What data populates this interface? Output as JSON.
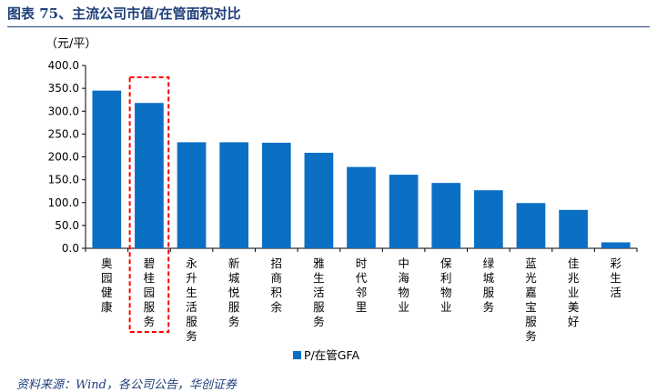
{
  "header": {
    "title": "图表 75、主流公司市值/在管面积对比"
  },
  "chart_data": {
    "type": "bar",
    "unit_label": "（元/平）",
    "categories": [
      "奥园健康",
      "碧桂园服务",
      "永升生活服务",
      "新城悦服务",
      "招商积余",
      "雅生活服务",
      "时代邻里",
      "中海物业",
      "保利物业",
      "绿城服务",
      "蓝光嘉宝服务",
      "佳兆业美好",
      "彩生活"
    ],
    "series": [
      {
        "name": "P/在管GFA",
        "values": [
          345,
          318,
          232,
          232,
          231,
          209,
          178,
          161,
          143,
          127,
          99,
          84,
          13
        ]
      }
    ],
    "ylim": [
      0,
      400
    ],
    "yticks": [
      "0.0",
      "50.0",
      "100.0",
      "150.0",
      "200.0",
      "250.0",
      "300.0",
      "350.0",
      "400.0"
    ],
    "highlight_index": 1,
    "bar_color": "#0b6fc4",
    "highlight_color": "#ff0000",
    "legend_position": "bottom"
  },
  "footer": {
    "source": "资料来源：Wind，各公司公告，华创证券"
  }
}
